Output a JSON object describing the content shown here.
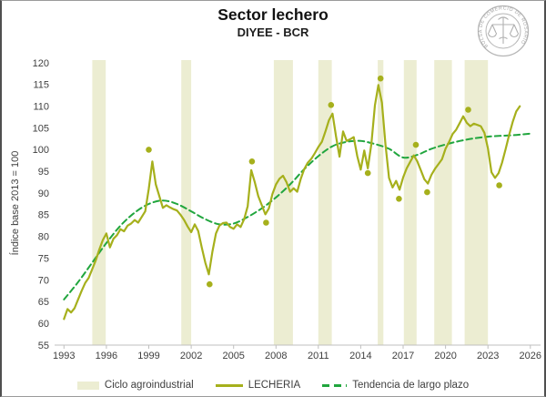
{
  "header": {
    "title": "Sector lechero",
    "subtitle": "DIYEE - BCR"
  },
  "logo": {
    "text": "BOLSA DE COMERCIO DE ROSARIO"
  },
  "legend": {
    "items": [
      {
        "label": "Ciclo agroindustrial",
        "type": "band"
      },
      {
        "label": "LECHERIA",
        "type": "line"
      },
      {
        "label": "Tendencia de largo plazo",
        "type": "dashed-line"
      }
    ]
  },
  "chart_data": {
    "type": "line",
    "title": "Sector lechero",
    "subtitle": "DIYEE - BCR",
    "xlabel": "",
    "ylabel": "Índice base 2013 = 100",
    "x_range": [
      1993,
      2026
    ],
    "y_range": [
      55,
      120
    ],
    "x_ticks": [
      1993,
      1996,
      1999,
      2002,
      2005,
      2008,
      2011,
      2014,
      2017,
      2020,
      2023,
      2026
    ],
    "y_ticks": [
      55,
      60,
      65,
      70,
      75,
      80,
      85,
      90,
      95,
      100,
      105,
      110,
      115,
      120
    ],
    "grid": false,
    "legend_position": "bottom",
    "colors": {
      "lecheria": "#a6b01c",
      "trend": "#21a63e",
      "band": "#ecedd2",
      "axis": "#bfbfbf",
      "tick_text": "#3f3f3f"
    },
    "cycle_bands": [
      [
        1995.0,
        1995.95
      ],
      [
        2001.3,
        2002.0
      ],
      [
        2007.85,
        2009.2
      ],
      [
        2011.0,
        2011.95
      ],
      [
        2015.2,
        2015.6
      ],
      [
        2017.05,
        2017.95
      ],
      [
        2019.2,
        2020.45
      ],
      [
        2021.35,
        2023.0
      ]
    ],
    "series": [
      {
        "name": "LECHERIA",
        "style": "solid",
        "x_start": 1993.0,
        "x_step": 0.25,
        "values": [
          61.0,
          63.3,
          62.5,
          63.5,
          65.5,
          67.5,
          69.3,
          70.5,
          72.5,
          74.5,
          77.0,
          79.2,
          80.7,
          77.5,
          79.5,
          80.3,
          81.7,
          81.2,
          82.5,
          83.0,
          83.8,
          83.2,
          84.5,
          85.8,
          91.0,
          97.3,
          92.0,
          89.3,
          86.6,
          87.2,
          86.7,
          86.3,
          86.0,
          85.0,
          83.8,
          82.3,
          81.0,
          82.8,
          81.3,
          77.5,
          74.0,
          71.3,
          76.5,
          80.7,
          82.5,
          83.1,
          83.2,
          82.2,
          81.8,
          82.8,
          82.2,
          84.0,
          87.0,
          95.3,
          92.5,
          89.3,
          87.2,
          85.1,
          86.5,
          89.8,
          92.0,
          93.3,
          94.0,
          92.5,
          90.3,
          91.1,
          90.3,
          93.2,
          95.5,
          97.0,
          97.9,
          99.2,
          100.6,
          101.8,
          104.2,
          106.8,
          108.3,
          103.0,
          98.4,
          104.2,
          102.0,
          102.4,
          102.9,
          98.5,
          95.4,
          99.8,
          95.7,
          101.3,
          110.2,
          114.9,
          110.8,
          101.2,
          93.5,
          91.3,
          92.8,
          90.8,
          93.6,
          95.7,
          97.2,
          98.7,
          97.3,
          95.3,
          93.2,
          92.2,
          94.2,
          95.6,
          96.7,
          97.8,
          100.2,
          101.8,
          103.6,
          104.6,
          106.1,
          107.7,
          106.2,
          105.4,
          106.0,
          105.7,
          105.4,
          103.9,
          100.3,
          94.8,
          93.5,
          94.6,
          97.0,
          100.1,
          103.4,
          106.4,
          108.8,
          110.0
        ]
      },
      {
        "name": "Tendencia de largo plazo",
        "style": "dashed",
        "x_start": 1993.0,
        "x_step": 1.0,
        "values": [
          65.5,
          69.5,
          74.0,
          78.5,
          82.5,
          85.5,
          87.5,
          88.3,
          87.5,
          85.8,
          84.0,
          82.8,
          83.0,
          84.5,
          86.5,
          89.0,
          92.0,
          95.5,
          98.5,
          100.8,
          101.8,
          102.0,
          101.3,
          100.2,
          98.2,
          98.8,
          100.2,
          101.2,
          102.0,
          102.6,
          103.0,
          103.2,
          103.4,
          103.7
        ]
      }
    ],
    "markers": {
      "name": "cycle peak/trough dots",
      "points": [
        [
          1999.0,
          100.0
        ],
        [
          2003.3,
          69.0
        ],
        [
          2006.3,
          97.3
        ],
        [
          2007.3,
          83.2
        ],
        [
          2011.9,
          110.3
        ],
        [
          2014.5,
          94.6
        ],
        [
          2015.4,
          116.4
        ],
        [
          2016.7,
          88.7
        ],
        [
          2017.9,
          101.1
        ],
        [
          2018.7,
          90.2
        ],
        [
          2021.6,
          109.2
        ],
        [
          2023.8,
          91.8
        ]
      ]
    }
  }
}
